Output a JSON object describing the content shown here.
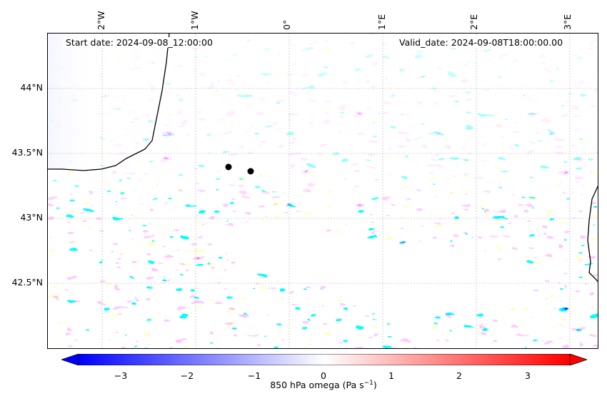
{
  "map": {
    "start_date": "Start date: 2024-09-08_12:00:00",
    "valid_date": "Valid_date: 2024-09-08T18:00:00.00",
    "lon_labels": [
      "2°W",
      "1°W",
      "0°",
      "1°E",
      "2°E",
      "3°E"
    ],
    "lat_labels": [
      "44°N",
      "43.5°N",
      "43°N",
      "42.5°N"
    ],
    "colorbar_ticks": [
      "−3",
      "−2",
      "−1",
      "0",
      "1",
      "2",
      "3"
    ],
    "colorbar_label": "850 hPa omega (Pa s",
    "colorbar_label_sup": "−1",
    "colorbar_label_end": ")",
    "colors": {
      "negative": "#0000ff",
      "zero": "#ffffff",
      "positive": "#ff0000",
      "land_line": "#000000",
      "grid": "#b0b0b0"
    },
    "scale_range": [
      -3.5,
      3.5
    ]
  }
}
